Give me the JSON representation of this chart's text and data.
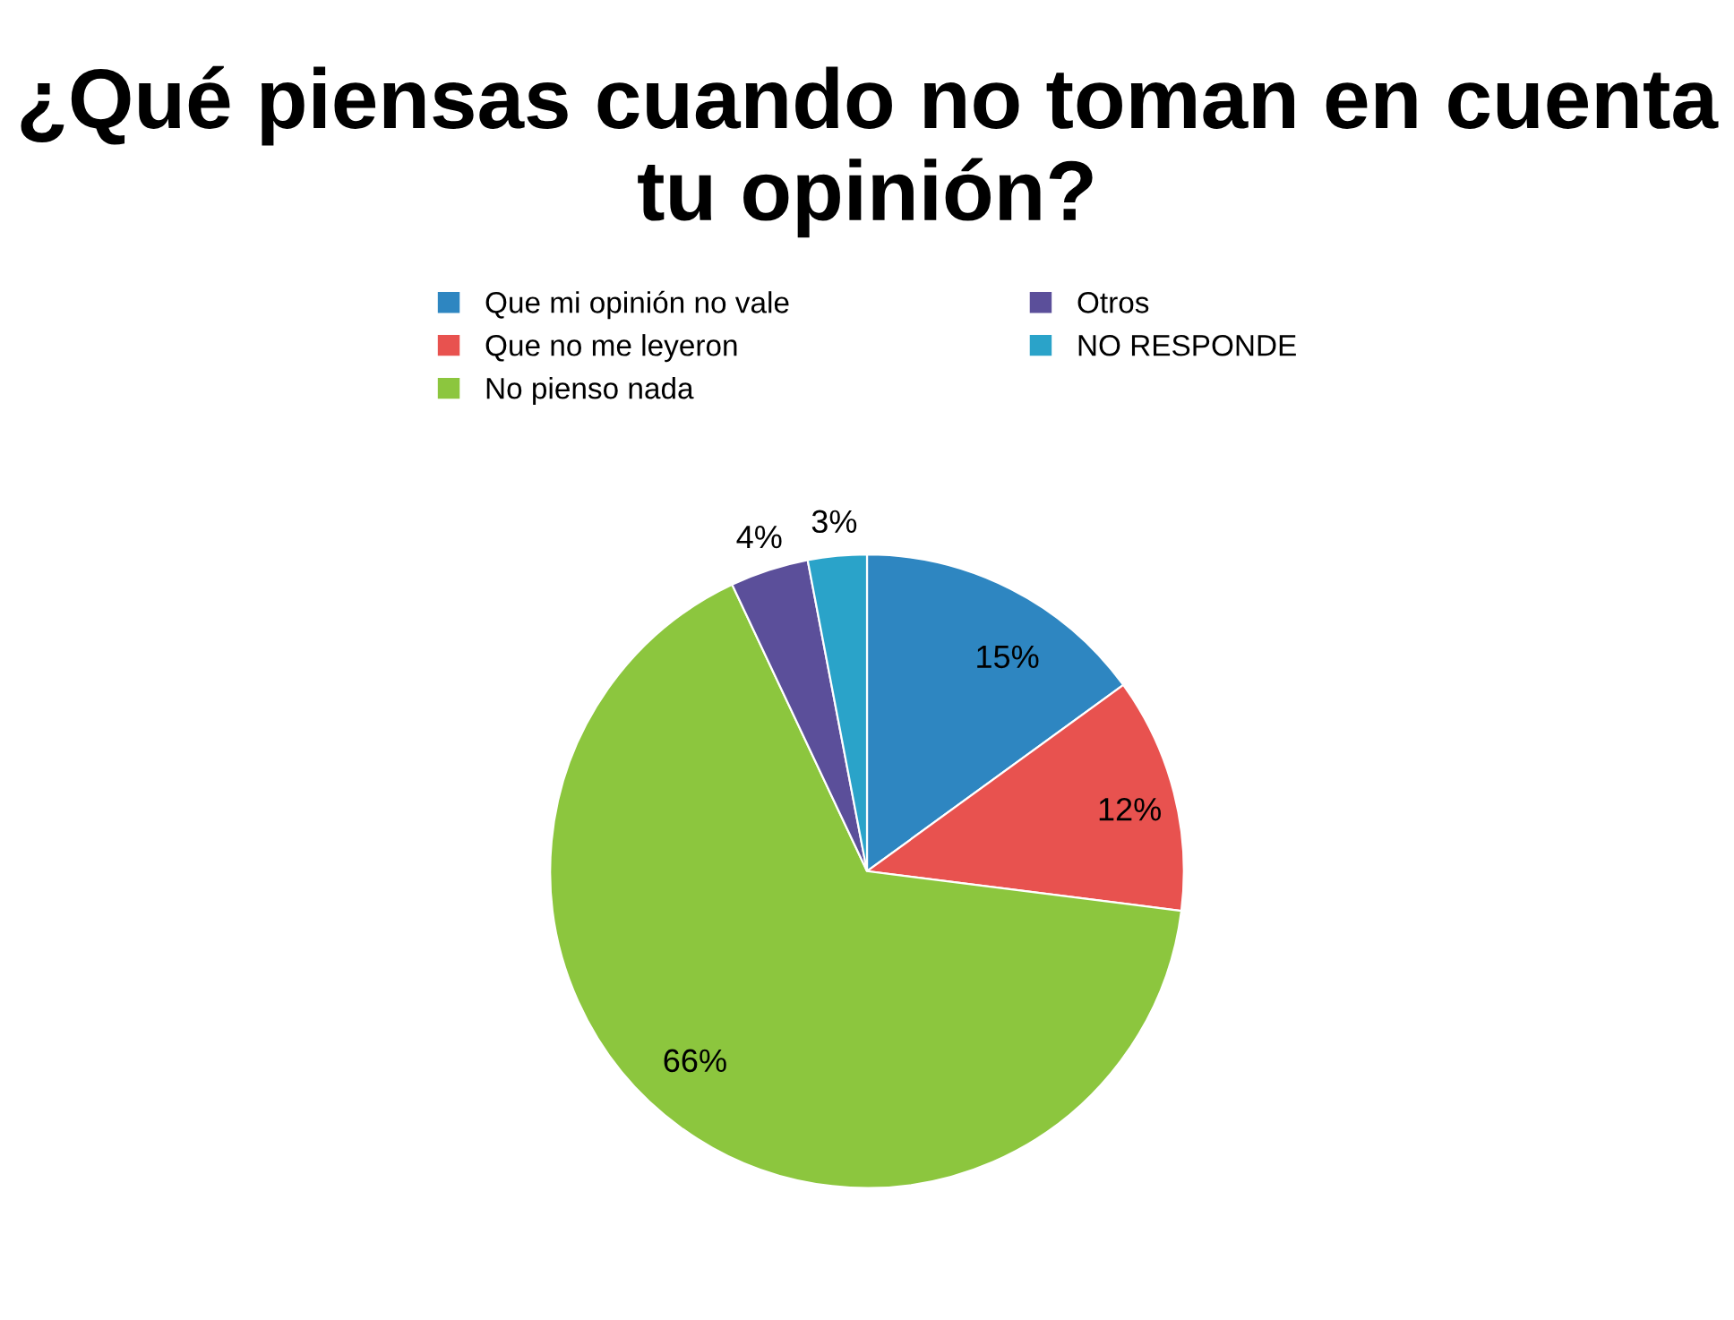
{
  "chart_data": {
    "type": "pie",
    "title": "¿Qué piensas cuando no toman en cuenta tu opinión?",
    "categories": [
      "Que mi opinión no vale",
      "Que no me leyeron",
      "No pienso nada",
      "Otros",
      "NO RESPONDE"
    ],
    "values": [
      15,
      12,
      66,
      4,
      3
    ],
    "value_labels": [
      "15%",
      "12%",
      "66%",
      "4%",
      "3%"
    ],
    "colors": [
      "#2e86c1",
      "#e8524f",
      "#8cc63e",
      "#5b4f9a",
      "#2aa3c9"
    ],
    "legend": "top"
  }
}
